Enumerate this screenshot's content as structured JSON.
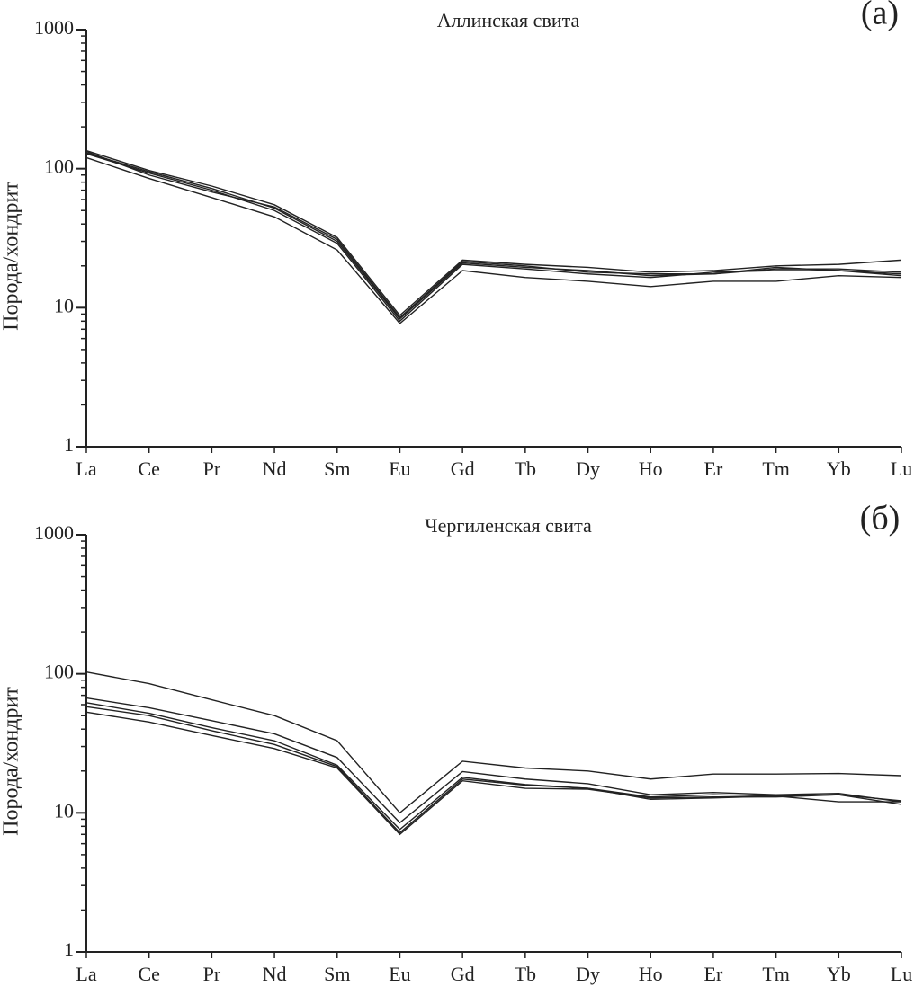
{
  "chart_data": [
    {
      "type": "line",
      "title": "Аллинская свита",
      "annotation": "(а)",
      "ylabel": "Порода/хондрит",
      "log_scale": true,
      "categories": [
        "La",
        "Ce",
        "Pr",
        "Nd",
        "Sm",
        "Eu",
        "Gd",
        "Tb",
        "Dy",
        "Ho",
        "Er",
        "Tm",
        "Yb",
        "Lu"
      ],
      "ylim": [
        1,
        1000
      ],
      "yticks": [
        1,
        10,
        100,
        1000
      ],
      "yminorticks": [
        2,
        3,
        4,
        5,
        6,
        7,
        8,
        9,
        20,
        30,
        40,
        50,
        60,
        70,
        80,
        90,
        200,
        300,
        400,
        500,
        600,
        700,
        800,
        900
      ],
      "series": [
        {
          "color": "#222222",
          "values": [
            135,
            97,
            75,
            55,
            32,
            8.8,
            22,
            20.5,
            19.5,
            18,
            18.5,
            20,
            20.5,
            22
          ]
        },
        {
          "color": "#222222",
          "values": [
            130,
            95,
            72,
            52,
            30,
            8.3,
            21,
            19.5,
            18.5,
            17,
            17.5,
            19,
            19,
            18
          ]
        },
        {
          "color": "#222222",
          "values": [
            128,
            93,
            70,
            50,
            29,
            8.0,
            20.5,
            19,
            17.5,
            16.5,
            18,
            18.5,
            18.5,
            17
          ]
        },
        {
          "color": "#222222",
          "values": [
            120,
            85,
            62,
            45,
            26,
            7.7,
            18.5,
            16.5,
            15.5,
            14.2,
            15.5,
            15.5,
            17,
            16.5
          ]
        },
        {
          "color": "#222222",
          "values": [
            133,
            90,
            68,
            53,
            31,
            8.5,
            21.5,
            20,
            18,
            17.5,
            17.5,
            19.5,
            18.5,
            17.5
          ]
        }
      ]
    },
    {
      "type": "line",
      "title": "Чергиленская свита",
      "annotation": "(б)",
      "ylabel": "Порода/хондрит",
      "log_scale": true,
      "categories": [
        "La",
        "Ce",
        "Pr",
        "Nd",
        "Sm",
        "Eu",
        "Gd",
        "Tb",
        "Dy",
        "Ho",
        "Er",
        "Tm",
        "Yb",
        "Lu"
      ],
      "ylim": [
        1,
        1000
      ],
      "yticks": [
        1,
        10,
        100,
        1000
      ],
      "yminorticks": [
        2,
        3,
        4,
        5,
        6,
        7,
        8,
        9,
        20,
        30,
        40,
        50,
        60,
        70,
        80,
        90,
        200,
        300,
        400,
        500,
        600,
        700,
        800,
        900
      ],
      "series": [
        {
          "color": "#222222",
          "values": [
            103,
            85,
            65,
            50,
            33,
            10,
            23.5,
            21,
            20,
            17.5,
            19,
            19,
            19.2,
            18.5
          ]
        },
        {
          "color": "#222222",
          "values": [
            67,
            57,
            46,
            37,
            25,
            8.5,
            19.8,
            17.5,
            16.2,
            13.5,
            14,
            13.5,
            13.8,
            12
          ]
        },
        {
          "color": "#222222",
          "values": [
            62,
            52,
            41,
            33,
            22,
            7.6,
            18,
            16,
            15,
            13,
            13.5,
            13.2,
            13.5,
            11.5
          ]
        },
        {
          "color": "#222222",
          "values": [
            58,
            50,
            39,
            31,
            21.5,
            7.2,
            17.5,
            15.8,
            15,
            12.5,
            12.8,
            13.2,
            12,
            12
          ]
        },
        {
          "color": "#222222",
          "values": [
            53,
            45,
            36,
            29,
            21,
            7.0,
            17,
            15,
            14.8,
            12.8,
            13,
            13,
            13.5,
            12.2
          ]
        }
      ]
    }
  ]
}
